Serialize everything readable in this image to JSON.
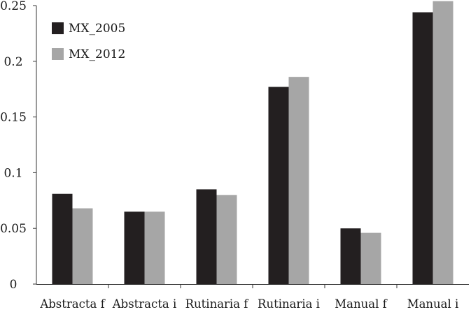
{
  "chart_data": {
    "type": "bar",
    "title": "",
    "xlabel": "",
    "ylabel": "",
    "ylim": [
      0,
      0.25
    ],
    "yticks": [
      "0",
      "0.05",
      "0.1",
      "0.15",
      "0.2",
      "0.25"
    ],
    "ytick_values": [
      0,
      0.05,
      0.1,
      0.15,
      0.2,
      0.25
    ],
    "grid": false,
    "legend_position": "top-left",
    "categories": [
      "Abstracta f",
      "Abstracta i",
      "Rutinaria f",
      "Rutinaria i",
      "Manual f",
      "Manual i"
    ],
    "series": [
      {
        "name": "MX_2005",
        "color": "#231f20",
        "values": [
          0.081,
          0.065,
          0.085,
          0.177,
          0.05,
          0.244
        ]
      },
      {
        "name": "MX_2012",
        "color": "#a6a6a6",
        "values": [
          0.068,
          0.065,
          0.08,
          0.186,
          0.046,
          0.254
        ]
      }
    ]
  }
}
